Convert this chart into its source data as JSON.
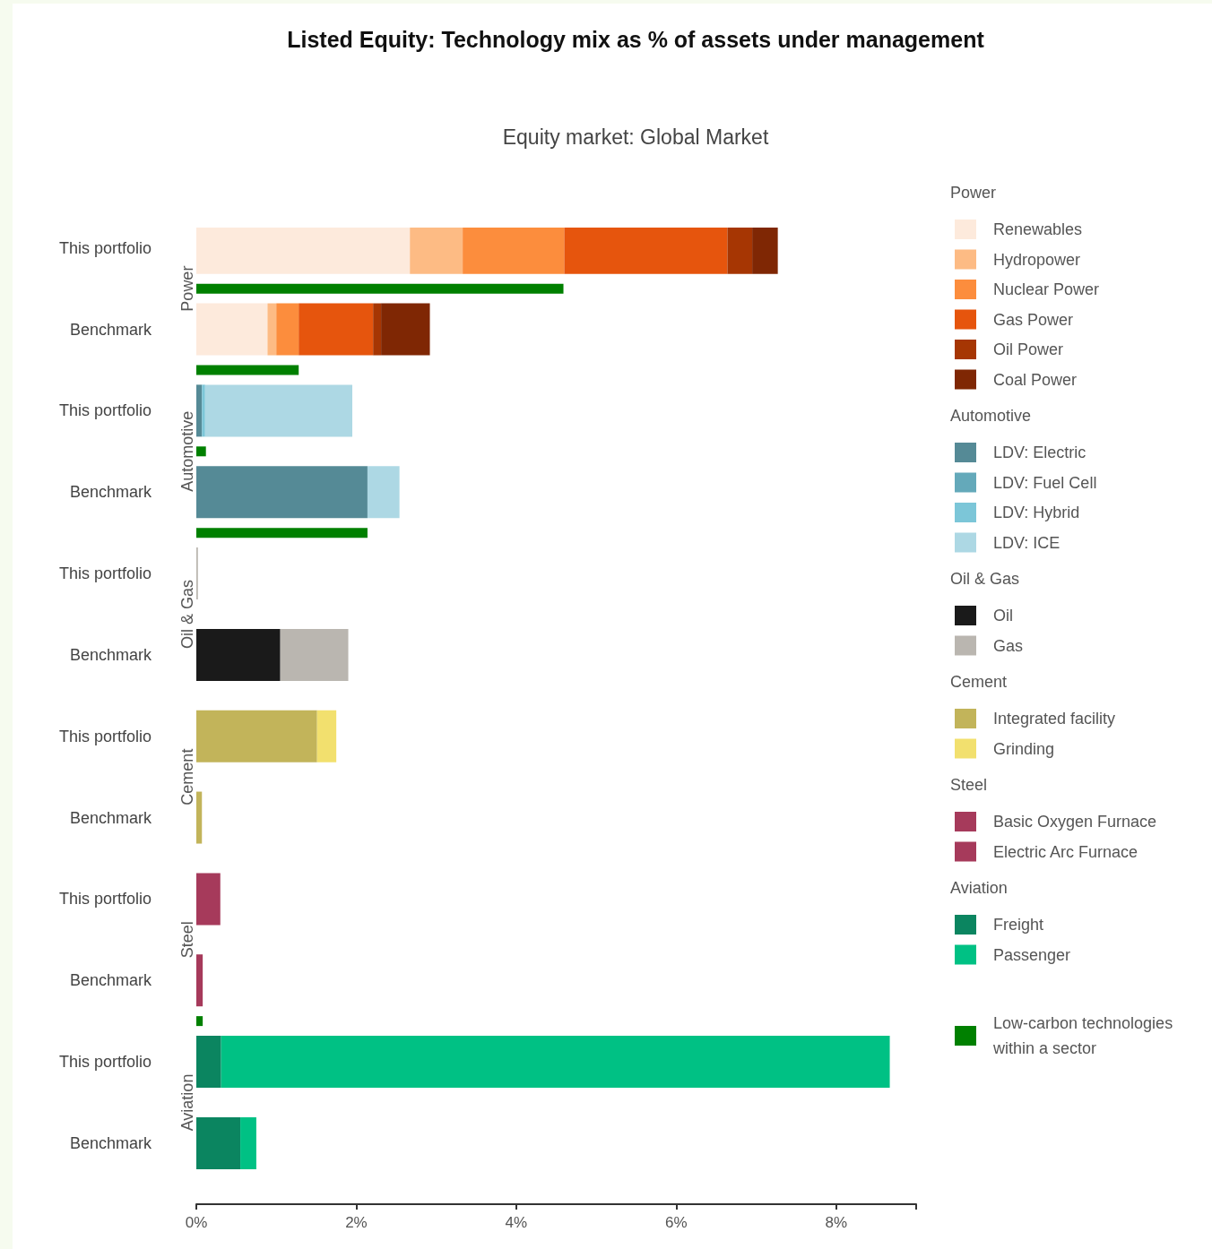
{
  "chart_data": {
    "type": "bar",
    "orientation": "horizontal",
    "stacked": true,
    "title": "Listed Equity: Technology mix as % of assets under management",
    "subtitle": "Equity market: Global Market",
    "categories": [
      "This portfolio",
      null,
      "Benchmark",
      null,
      "This portfolio",
      null,
      "Benchmark",
      null,
      "This portfolio",
      null,
      "Benchmark",
      null,
      "This portfolio",
      null,
      "Benchmark",
      null,
      "This portfolio",
      null,
      "Benchmark",
      null,
      "This portfolio",
      null,
      "Benchmark",
      null
    ],
    "annotations": [
      "Power",
      "Automotive",
      "Oil & Gas",
      "Cement",
      "Steel",
      "Aviation"
    ],
    "series": [
      {
        "name": "Renewables",
        "color": "#fdeadc",
        "values": [
          2.67,
          null,
          0.89,
          null,
          null,
          null,
          null,
          null,
          null,
          null,
          null,
          null,
          null,
          null,
          null,
          null,
          null,
          null,
          null,
          null,
          null,
          null,
          null,
          null
        ]
      },
      {
        "name": "Hydropower",
        "color": "#fdbb84",
        "values": [
          0.66,
          null,
          0.11,
          null,
          null,
          null,
          null,
          null,
          null,
          null,
          null,
          null,
          null,
          null,
          null,
          null,
          null,
          null,
          null,
          null,
          null,
          null,
          null,
          null
        ]
      },
      {
        "name": "Nuclear Power",
        "color": "#fc8d3d",
        "values": [
          1.27,
          null,
          0.28,
          null,
          null,
          null,
          null,
          null,
          null,
          null,
          null,
          null,
          null,
          null,
          null,
          null,
          null,
          null,
          null,
          null,
          null,
          null,
          null,
          null
        ]
      },
      {
        "name": "Gas Power",
        "color": "#e6550d",
        "values": [
          2.04,
          null,
          0.93,
          null,
          null,
          null,
          null,
          null,
          null,
          null,
          null,
          null,
          null,
          null,
          null,
          null,
          null,
          null,
          null,
          null,
          null,
          null,
          null,
          null
        ]
      },
      {
        "name": "Oil Power",
        "color": "#a63603",
        "values": [
          0.31,
          null,
          0.1,
          null,
          null,
          null,
          null,
          null,
          null,
          null,
          null,
          null,
          null,
          null,
          null,
          null,
          null,
          null,
          null,
          null,
          null,
          null,
          null,
          null
        ]
      },
      {
        "name": "Coal Power",
        "color": "#7f2704",
        "values": [
          0.32,
          null,
          0.61,
          null,
          null,
          null,
          null,
          null,
          null,
          null,
          null,
          null,
          null,
          null,
          null,
          null,
          null,
          null,
          null,
          null,
          null,
          null,
          null,
          null
        ]
      },
      {
        "name": "LDV: Electric",
        "color": "#558a96",
        "values": [
          null,
          null,
          null,
          null,
          0.07,
          null,
          2.14,
          null,
          null,
          null,
          null,
          null,
          null,
          null,
          null,
          null,
          null,
          null,
          null,
          null,
          null,
          null,
          null,
          null
        ]
      },
      {
        "name": "LDV: Fuel Cell",
        "color": "#64a9ba",
        "values": [
          null,
          null,
          null,
          null,
          0,
          null,
          0,
          null,
          null,
          null,
          null,
          null,
          null,
          null,
          null,
          null,
          null,
          null,
          null,
          null,
          null,
          null,
          null,
          null
        ]
      },
      {
        "name": "LDV: Hybrid",
        "color": "#7cc6d8",
        "values": [
          null,
          null,
          null,
          null,
          0.04,
          null,
          0,
          null,
          null,
          null,
          null,
          null,
          null,
          null,
          null,
          null,
          null,
          null,
          null,
          null,
          null,
          null,
          null,
          null
        ]
      },
      {
        "name": "LDV: ICE",
        "color": "#add8e4",
        "values": [
          null,
          null,
          null,
          null,
          1.84,
          null,
          0.4,
          null,
          null,
          null,
          null,
          null,
          null,
          null,
          null,
          null,
          null,
          null,
          null,
          null,
          null,
          null,
          null,
          null
        ]
      },
      {
        "name": "Oil",
        "color": "#1a1a1a",
        "values": [
          null,
          null,
          null,
          null,
          null,
          null,
          null,
          null,
          0,
          null,
          1.05,
          null,
          null,
          null,
          null,
          null,
          null,
          null,
          null,
          null,
          null,
          null,
          null,
          null
        ]
      },
      {
        "name": "Gas",
        "color": "#bab6b0",
        "values": [
          null,
          null,
          null,
          null,
          null,
          null,
          null,
          null,
          0.02,
          null,
          0.85,
          null,
          null,
          null,
          null,
          null,
          null,
          null,
          null,
          null,
          null,
          null,
          null,
          null
        ]
      },
      {
        "name": "Integrated facility",
        "color": "#c2b45a",
        "values": [
          null,
          null,
          null,
          null,
          null,
          null,
          null,
          null,
          null,
          null,
          null,
          null,
          1.51,
          null,
          0.07,
          null,
          null,
          null,
          null,
          null,
          null,
          null,
          null,
          null
        ]
      },
      {
        "name": "Grinding",
        "color": "#f2e06e",
        "values": [
          null,
          null,
          null,
          null,
          null,
          null,
          null,
          null,
          null,
          null,
          null,
          null,
          0.24,
          null,
          0,
          null,
          null,
          null,
          null,
          null,
          null,
          null,
          null,
          null
        ]
      },
      {
        "name": "Basic Oxygen Furnace",
        "color": "#a63a5b",
        "values": [
          null,
          null,
          null,
          null,
          null,
          null,
          null,
          null,
          null,
          null,
          null,
          null,
          null,
          null,
          null,
          null,
          0.3,
          null,
          0.08,
          null,
          null,
          null,
          null,
          null
        ]
      },
      {
        "name": "Electric Arc Furnace",
        "color": "#a63a5b",
        "values": [
          null,
          null,
          null,
          null,
          null,
          null,
          null,
          null,
          null,
          null,
          null,
          null,
          null,
          null,
          null,
          null,
          0,
          null,
          0,
          null,
          null,
          null,
          null,
          null
        ]
      },
      {
        "name": "Freight",
        "color": "#0b8560",
        "values": [
          null,
          null,
          null,
          null,
          null,
          null,
          null,
          null,
          null,
          null,
          null,
          null,
          null,
          null,
          null,
          null,
          null,
          null,
          null,
          null,
          0.31,
          null,
          0.55,
          null
        ]
      },
      {
        "name": "Passenger",
        "color": "#00c184",
        "values": [
          null,
          null,
          null,
          null,
          null,
          null,
          null,
          null,
          null,
          null,
          null,
          null,
          null,
          null,
          null,
          null,
          null,
          null,
          null,
          null,
          8.36,
          null,
          0.2,
          null
        ]
      },
      {
        "name": "Low-carbon technologies within a sector",
        "color": "#008000",
        "values": [
          null,
          4.59,
          null,
          1.28,
          null,
          0.12,
          null,
          2.14,
          null,
          null,
          null,
          null,
          null,
          null,
          null,
          null,
          null,
          null,
          null,
          0.08,
          null,
          null,
          null,
          null
        ]
      }
    ],
    "xlim": [
      0,
      9
    ],
    "xticks": [
      {
        "value": 0,
        "label": "0%"
      },
      {
        "value": 2,
        "label": "2%"
      },
      {
        "value": 4,
        "label": "4%"
      },
      {
        "value": 6,
        "label": "6%"
      },
      {
        "value": 8,
        "label": "8%"
      },
      {
        "value": 9,
        "label": null
      }
    ],
    "grid": false,
    "legend": "right"
  }
}
